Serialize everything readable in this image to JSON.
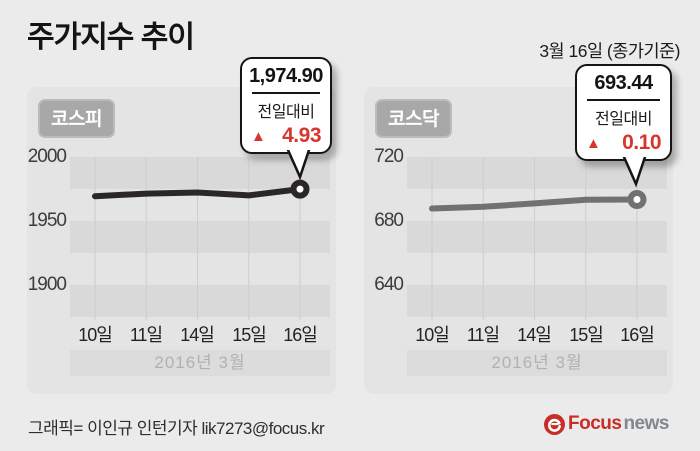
{
  "page": {
    "title": "주가지수 추이",
    "date_note": "3월 16일 (종가기준)"
  },
  "chart_data": [
    {
      "type": "line",
      "name": "코스피",
      "x": [
        "10일",
        "11일",
        "14일",
        "15일",
        "16일"
      ],
      "values": [
        1969.41,
        1971.41,
        1972.27,
        1969.97,
        1974.9
      ],
      "y_ticks": [
        2000,
        1950,
        1900
      ],
      "ylim": [
        1873,
        2000
      ],
      "x_axis_note": "2016년 3월",
      "line_color": "#2b2728",
      "grid": "horizontal-bands",
      "legend": "none",
      "callout": {
        "value": "1,974.90",
        "change_label": "전일대비",
        "change": "4.93",
        "direction": "up",
        "direction_icon": "▲"
      }
    },
    {
      "type": "line",
      "name": "코스닥",
      "x": [
        "10일",
        "11일",
        "14일",
        "15일",
        "16일"
      ],
      "values": [
        687.8,
        688.9,
        691.0,
        693.34,
        693.44
      ],
      "y_ticks": [
        720,
        680,
        640
      ],
      "ylim": [
        618,
        720
      ],
      "x_axis_note": "2016년 3월",
      "line_color": "#717171",
      "grid": "horizontal-bands",
      "legend": "none",
      "callout": {
        "value": "693.44",
        "change_label": "전일대비",
        "change": "0.10",
        "direction": "up",
        "direction_icon": "▲"
      }
    }
  ],
  "footer": {
    "credit": "그래픽= 이인규 인턴기자 lik7273@focus.kr",
    "logo": {
      "brand": "Focus",
      "suffix": "news"
    }
  },
  "colors": {
    "accent_red": "#d8362c",
    "page_bg": "#ebebeb",
    "panel_bg": "#e4e4e4",
    "stripe": "#d9d9d9",
    "kospi_line": "#2b2728",
    "kosdaq_line": "#717171"
  }
}
